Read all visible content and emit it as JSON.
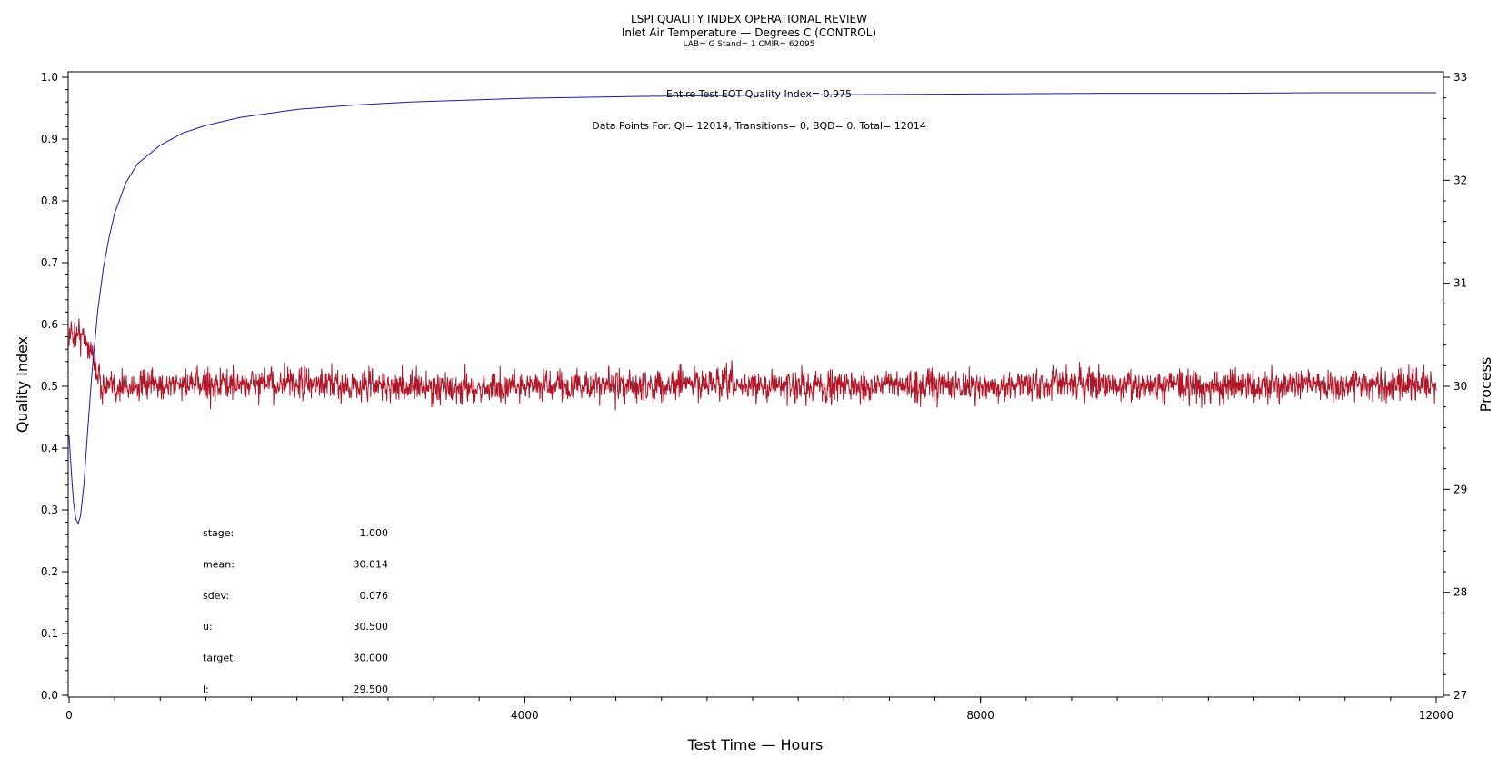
{
  "chart_data": {
    "type": "line",
    "title": "LSPI QUALITY INDEX OPERATIONAL REVIEW",
    "subtitle": "Inlet Air Temperature — Degrees C (CONTROL)",
    "subsubtitle": "LAB= G Stand= 1 CMIR= 62095",
    "xlabel": "Test Time — Hours",
    "ylabel_left": "Quality Index",
    "ylabel_right": "Process",
    "xlim": [
      0,
      12000
    ],
    "ylim_left": [
      0,
      1
    ],
    "ylim_right": [
      27,
      33
    ],
    "x_ticks": [
      "0",
      "4000",
      "8000",
      "12000"
    ],
    "y_ticks_left": [
      "0.0",
      "0.1",
      "0.2",
      "0.3",
      "0.4",
      "0.5",
      "0.6",
      "0.7",
      "0.8",
      "0.9",
      "1.0"
    ],
    "y_ticks_right": [
      "27",
      "28",
      "29",
      "30",
      "31",
      "32",
      "33"
    ],
    "grid": false,
    "annotations": {
      "eot": "Entire Test EOT Quality Index=   0.975",
      "points": "Data Points For: QI= 12014, Transitions=     0, BQD=     0, Total= 12014"
    },
    "stats": [
      {
        "label": "stage:",
        "value": "1.000"
      },
      {
        "label": "mean:",
        "value": "30.014"
      },
      {
        "label": "sdev:",
        "value": "0.076"
      },
      {
        "label": "u:",
        "value": "30.500"
      },
      {
        "label": "target:",
        "value": "30.000"
      },
      {
        "label": "l:",
        "value": "29.500"
      }
    ],
    "series": [
      {
        "axis": "left",
        "color": "#1a1aa6",
        "x": [
          0,
          20,
          40,
          60,
          80,
          100,
          130,
          160,
          200,
          250,
          300,
          350,
          400,
          500,
          600,
          800,
          1000,
          1200,
          1500,
          2000,
          2500,
          3000,
          4000,
          5000,
          6000,
          7000,
          8000,
          9000,
          10000,
          11000,
          12000
        ],
        "values": [
          0.42,
          0.36,
          0.31,
          0.285,
          0.278,
          0.29,
          0.34,
          0.42,
          0.52,
          0.62,
          0.69,
          0.74,
          0.78,
          0.83,
          0.86,
          0.89,
          0.91,
          0.922,
          0.935,
          0.948,
          0.955,
          0.96,
          0.966,
          0.969,
          0.971,
          0.972,
          0.973,
          0.974,
          0.974,
          0.975,
          0.975
        ]
      },
      {
        "axis": "right",
        "color": "#b0182a",
        "x": [
          0,
          50,
          100,
          150,
          200,
          250,
          300,
          400,
          600,
          1000,
          2000,
          3000,
          3400,
          4000,
          5000,
          5500,
          6000,
          7000,
          8000,
          9000,
          10000,
          11000,
          12000
        ],
        "values": [
          30.5,
          30.52,
          30.5,
          30.45,
          30.32,
          30.12,
          29.98,
          29.99,
          30.0,
          30.02,
          30.02,
          30.0,
          29.97,
          30.01,
          30.0,
          30.03,
          30.0,
          30.01,
          30.0,
          30.02,
          30.0,
          30.01,
          30.02
        ],
        "noise_sdev": 0.076,
        "n_points": 12014
      }
    ]
  }
}
